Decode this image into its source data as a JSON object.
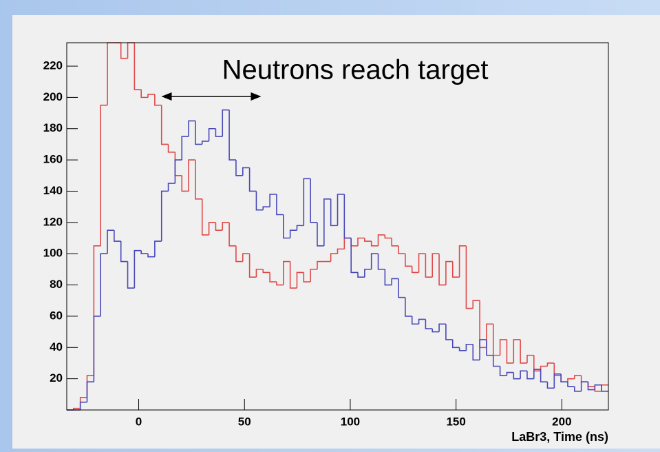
{
  "chart_data": {
    "type": "histogram",
    "xlabel": "LaBr3, Time (ns)",
    "annotation": "Neutrons reach target",
    "bins": [
      -34.0,
      -30.8,
      -27.6,
      -24.4,
      -21.2,
      -18.0,
      -14.8,
      -11.6,
      -8.4,
      -5.2,
      -2.0,
      1.2,
      4.4,
      7.6,
      10.8,
      14.0,
      17.2,
      20.4,
      23.6,
      26.8,
      30.0,
      33.2,
      36.4,
      39.6,
      42.8,
      46.0,
      49.2,
      52.4,
      55.6,
      58.8,
      62.0,
      65.2,
      68.4,
      71.6,
      74.8,
      78.0,
      81.2,
      84.4,
      87.6,
      90.8,
      94.0,
      97.2,
      100.4,
      103.6,
      106.8,
      110.0,
      113.2,
      116.4,
      119.6,
      122.8,
      126.0,
      129.2,
      132.4,
      135.6,
      138.8,
      142.0,
      145.2,
      148.4,
      151.6,
      154.8,
      158.0,
      161.2,
      164.4,
      167.6,
      170.8,
      174.0,
      177.2,
      180.4,
      183.6,
      186.8,
      190.0,
      193.2,
      196.4,
      199.6,
      202.8,
      206.0,
      209.2,
      212.4,
      215.6,
      218.8,
      222.0
    ],
    "series": [
      {
        "color": "#e04848",
        "values": [
          0,
          1,
          8,
          22,
          105,
          195,
          235,
          235,
          225,
          235,
          205,
          200,
          202,
          195,
          170,
          165,
          150,
          140,
          160,
          135,
          112,
          120,
          115,
          120,
          105,
          95,
          100,
          85,
          90,
          88,
          82,
          80,
          95,
          78,
          88,
          82,
          90,
          95,
          95,
          100,
          103,
          110,
          105,
          110,
          108,
          105,
          112,
          110,
          105,
          100,
          92,
          88,
          100,
          85,
          100,
          80,
          95,
          85,
          105,
          65,
          70,
          40,
          55,
          35,
          45,
          30,
          45,
          30,
          35,
          25,
          28,
          30,
          22,
          18,
          20,
          22,
          18,
          15,
          12,
          16
        ]
      },
      {
        "color": "#4848b8",
        "values": [
          0,
          0,
          5,
          18,
          60,
          100,
          115,
          108,
          95,
          78,
          102,
          100,
          98,
          108,
          140,
          145,
          160,
          175,
          185,
          170,
          172,
          180,
          175,
          192,
          160,
          150,
          155,
          140,
          128,
          130,
          138,
          125,
          110,
          115,
          118,
          148,
          120,
          105,
          135,
          118,
          138,
          110,
          88,
          85,
          90,
          100,
          90,
          80,
          84,
          72,
          60,
          55,
          58,
          52,
          50,
          55,
          45,
          40,
          38,
          42,
          32,
          45,
          35,
          28,
          22,
          24,
          20,
          25,
          20,
          26,
          18,
          14,
          23,
          18,
          15,
          12,
          18,
          13,
          16,
          12
        ]
      }
    ],
    "xlim": [
      -34,
      222
    ],
    "ylim": [
      0,
      235
    ],
    "xticks": [
      0,
      50,
      100,
      150,
      200
    ],
    "yticks": [
      20,
      40,
      60,
      80,
      100,
      120,
      140,
      160,
      180,
      200,
      220
    ]
  }
}
